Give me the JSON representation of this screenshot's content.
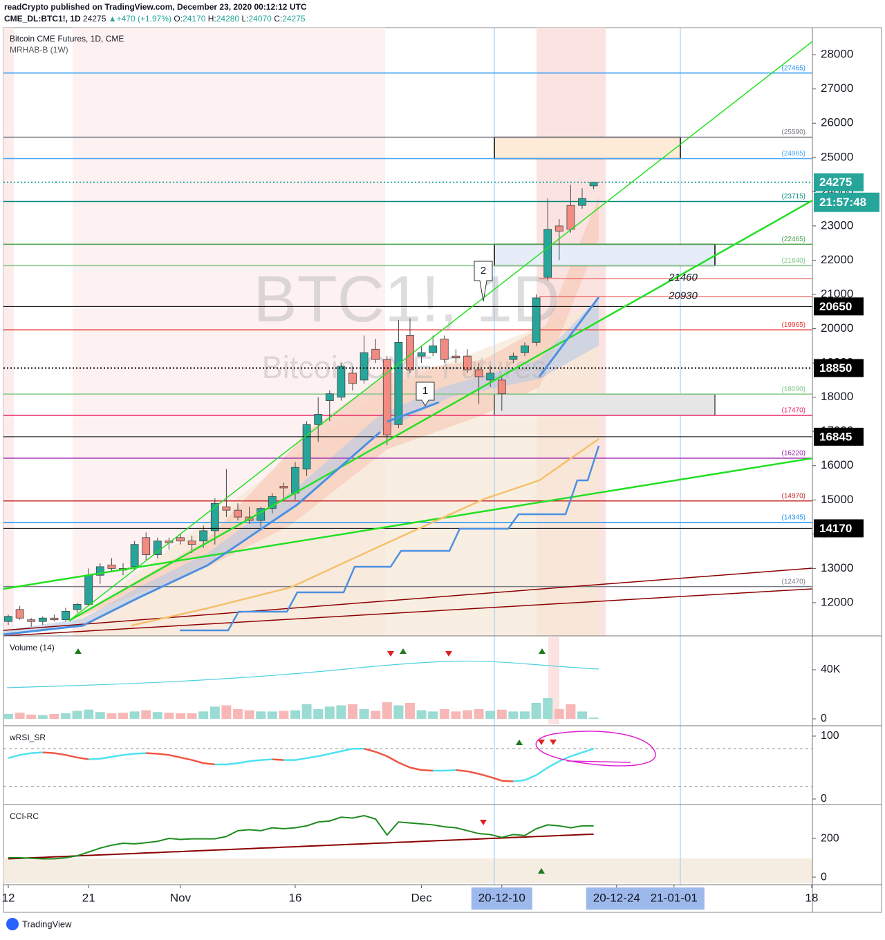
{
  "header": {
    "byline": "readCrypto published on TradingView.com, December 23, 2020 00:12:12 UTC",
    "symbol": "CME_DL:BTC1!, 1D",
    "last": 24275,
    "change": "▲+470 (+1.97%)",
    "ohlc": [
      {
        "label": "O:",
        "value": 24170
      },
      {
        "label": "H:",
        "value": 24280
      },
      {
        "label": "L:",
        "value": 24070
      },
      {
        "label": "C:",
        "value": 24275
      }
    ]
  },
  "chart_data": {
    "type": "candlestick",
    "title": "Bitcoin CME Futures, 1D, CME",
    "subtitle": "MRHAB-B (1W)",
    "watermark": "BTC1!, 1D",
    "watermark_sub": "Bitcoin CME Futures",
    "categories": [
      "12",
      null,
      null,
      null,
      null,
      null,
      null,
      "21",
      null,
      null,
      null,
      null,
      null,
      null,
      null,
      "Nov",
      null,
      null,
      null,
      null,
      null,
      null,
      null,
      null,
      null,
      "16",
      null,
      null,
      null,
      null,
      null,
      null,
      null,
      null,
      null,
      null,
      "Dec",
      null,
      null,
      null,
      null,
      null,
      null,
      "20-12-10",
      null,
      null,
      null,
      null,
      null,
      null,
      null,
      null,
      null,
      "20-12-24",
      null,
      null,
      null,
      null,
      "21-01-01",
      null,
      null,
      null,
      null,
      null,
      null,
      null,
      null,
      null,
      null,
      null,
      "18"
    ],
    "open": [
      11450,
      11800,
      11500,
      11450,
      11550,
      11500,
      11800,
      11950,
      12800,
      13100,
      13000,
      13050,
      13900,
      13400,
      13800,
      13900,
      13800,
      13800,
      14100,
      14800,
      14700,
      14500,
      14400,
      14750,
      15400,
      15200,
      15900,
      17200,
      17900,
      18000,
      18700,
      18500,
      19400,
      19100,
      17200,
      19800,
      19200,
      19300,
      19700,
      19200,
      19200,
      18800,
      18500,
      18500,
      19100,
      19300,
      19600,
      21500,
      23000,
      23600,
      23600,
      24170,
      null,
      null,
      null,
      null,
      null,
      null,
      null,
      null,
      null,
      null,
      null,
      null,
      null,
      null,
      null,
      null,
      null,
      null,
      null
    ],
    "high": [
      11650,
      11900,
      11550,
      11600,
      11650,
      11850,
      12000,
      13000,
      13150,
      13300,
      13150,
      13800,
      14050,
      13900,
      13900,
      14000,
      13950,
      14250,
      15050,
      15900,
      14900,
      14800,
      14800,
      15200,
      15500,
      16100,
      17300,
      18000,
      18200,
      19000,
      18900,
      19800,
      19700,
      19200,
      20250,
      20300,
      19500,
      19800,
      19800,
      19400,
      19400,
      19000,
      18900,
      18600,
      19300,
      19600,
      21000,
      23800,
      23200,
      24200,
      24100,
      24280,
      null,
      null,
      null,
      null,
      null,
      null,
      null,
      null,
      null,
      null,
      null,
      null,
      null,
      null,
      null,
      null,
      null,
      null,
      null
    ],
    "low": [
      11350,
      11500,
      11300,
      11350,
      11450,
      11450,
      11700,
      11900,
      12550,
      12900,
      12800,
      12950,
      13250,
      13300,
      13550,
      13700,
      13450,
      13600,
      13700,
      14500,
      14400,
      14300,
      14200,
      14600,
      15050,
      15000,
      15700,
      16700,
      17300,
      17900,
      18200,
      18400,
      19000,
      16600,
      17100,
      18700,
      19000,
      19200,
      19000,
      19000,
      18700,
      17800,
      18300,
      17600,
      19000,
      19200,
      19500,
      21400,
      22000,
      22800,
      23500,
      24070,
      null,
      null,
      null,
      null,
      null,
      null,
      null,
      null,
      null,
      null,
      null,
      null,
      null,
      null,
      null,
      null,
      null,
      null,
      null
    ],
    "close": [
      11600,
      11550,
      11450,
      11550,
      11500,
      11750,
      11950,
      12800,
      13050,
      13000,
      12950,
      13700,
      13400,
      13800,
      13750,
      13800,
      13700,
      14100,
      14900,
      14700,
      14500,
      14400,
      14750,
      15100,
      15350,
      15950,
      17200,
      17500,
      18100,
      18900,
      18400,
      19300,
      19100,
      16900,
      19600,
      18800,
      19300,
      19500,
      19100,
      19150,
      18800,
      18600,
      18700,
      18100,
      19200,
      19500,
      20900,
      22900,
      22850,
      22900,
      23800,
      24275,
      null,
      null,
      null,
      null,
      null,
      null,
      null,
      null,
      null,
      null,
      null,
      null,
      null,
      null,
      null,
      null,
      null,
      null,
      null
    ],
    "up_color": "#26a69a",
    "down_color": "#f28b82",
    "ylim": [
      11030,
      28790
    ],
    "yticks": [
      12000,
      13000,
      14000,
      15000,
      16000,
      17000,
      18000,
      19000,
      20000,
      21000,
      22000,
      23000,
      24000,
      25000,
      26000,
      27000,
      28000
    ],
    "grid": false,
    "levels": [
      {
        "value": 27465,
        "label": "(27465)",
        "color": "#2196f3"
      },
      {
        "value": 25590,
        "label": "(25590)",
        "color": "#787b86"
      },
      {
        "value": 24965,
        "label": "(24965)",
        "color": "#42a5f5"
      },
      {
        "value": 23715,
        "label": "(23715)",
        "color": "#00897b"
      },
      {
        "value": 22465,
        "label": "(22465)",
        "color": "#43a047"
      },
      {
        "value": 21840,
        "label": "(21840)",
        "color": "#81c784"
      },
      {
        "value": 19965,
        "label": "(19965)",
        "color": "#e53935"
      },
      {
        "value": 18090,
        "label": "(18090)",
        "color": "#81c784"
      },
      {
        "value": 17470,
        "label": "(17470)",
        "color": "#e91e63"
      },
      {
        "value": 16220,
        "label": "(16220)",
        "color": "#9c27b0"
      },
      {
        "value": 14970,
        "label": "(14970)",
        "color": "#c62828"
      },
      {
        "value": 14345,
        "label": "(14345)",
        "color": "#2196f3"
      },
      {
        "value": 12470,
        "label": "(12470)",
        "color": "#787b86"
      }
    ],
    "annotated_levels": [
      21460,
      20930
    ],
    "badges": [
      {
        "value": 24275,
        "color": "#26a69a",
        "line_style": "dotted"
      },
      {
        "value": 20650,
        "color": "#000000",
        "line_style": "solid"
      },
      {
        "value": 18850,
        "color": "#000000",
        "line_style": "dotted"
      },
      {
        "value": 16845,
        "color": "#000000",
        "line_style": "solid"
      },
      {
        "value": 14170,
        "color": "#000000",
        "line_style": "solid"
      }
    ],
    "countdown": "21:57:48",
    "callouts": [
      "1",
      "2"
    ],
    "volume": {
      "title": "Volume (14)",
      "values": [
        4000,
        5000,
        3500,
        3000,
        4000,
        4500,
        6500,
        7500,
        5500,
        4500,
        5000,
        6000,
        7000,
        5500,
        5000,
        4500,
        4500,
        6000,
        10000,
        11000,
        8000,
        7000,
        6000,
        6000,
        6500,
        7000,
        12000,
        8000,
        10000,
        11000,
        12000,
        8000,
        6500,
        13500,
        11000,
        13000,
        7000,
        6000,
        8000,
        6000,
        7000,
        8000,
        6500,
        7500,
        6000,
        6000,
        13000,
        17000,
        8000,
        12000,
        6000,
        1000,
        null,
        null,
        null,
        null,
        null,
        null,
        null,
        null,
        null,
        null,
        null,
        null,
        null,
        null,
        null,
        null,
        null,
        null,
        null
      ],
      "up_color": "#9adbd3",
      "down_color": "#f7b7b7",
      "ylim": [
        -4500,
        66500
      ],
      "yticks": [
        0,
        {
          "value": 40000,
          "label": "40K"
        }
      ]
    },
    "wrsi": {
      "title": "wRSI_SR",
      "values": [
        65,
        70,
        73,
        74,
        73,
        70,
        66,
        63,
        64,
        67,
        70,
        72,
        73,
        72,
        70,
        66,
        62,
        57,
        55,
        55,
        57,
        60,
        62,
        63,
        62,
        62,
        65,
        68,
        72,
        76,
        80,
        80,
        75,
        68,
        58,
        50,
        46,
        45,
        45,
        46,
        44,
        40,
        35,
        29,
        28,
        30,
        38,
        50,
        60,
        68,
        74,
        80,
        null,
        null,
        null,
        null,
        null,
        null,
        null,
        null,
        null,
        null,
        null,
        null,
        null,
        null,
        null,
        null,
        null,
        null,
        null
      ],
      "rising_color": "#4ee1f0",
      "falling_color": "#f0553f",
      "bands": [
        80,
        20
      ],
      "ylim": [
        -6.6,
        114.3
      ],
      "yticks": [
        0,
        100
      ]
    },
    "cci": {
      "title": "CCI-RC",
      "values": [
        100,
        100,
        98,
        95,
        95,
        100,
        110,
        130,
        150,
        165,
        175,
        172,
        178,
        185,
        200,
        195,
        198,
        198,
        198,
        210,
        240,
        245,
        240,
        255,
        250,
        255,
        265,
        285,
        290,
        310,
        305,
        318,
        300,
        218,
        285,
        280,
        275,
        270,
        260,
        255,
        240,
        225,
        220,
        205,
        220,
        215,
        250,
        270,
        265,
        255,
        265,
        265,
        null,
        null,
        null,
        null,
        null,
        null,
        null,
        null,
        null,
        null,
        null,
        null,
        null,
        null,
        null,
        null,
        null,
        null,
        null
      ],
      "signal": [
        95,
        97,
        100,
        102,
        105,
        107,
        110,
        112,
        115,
        117,
        120,
        122,
        125,
        127,
        130,
        132,
        135,
        137,
        140,
        142,
        145,
        147,
        150,
        152,
        155,
        157,
        160,
        162,
        165,
        167,
        170,
        172,
        175,
        177,
        180,
        182,
        185,
        187,
        190,
        192,
        195,
        197,
        200,
        202,
        205,
        207,
        210,
        212,
        215,
        217,
        220,
        222,
        null,
        null,
        null,
        null,
        null,
        null,
        null,
        null,
        null,
        null,
        null,
        null,
        null,
        null,
        null,
        null,
        null,
        null,
        null
      ],
      "color": "#1e8c1e",
      "signal_color": "#8b0000",
      "ylim": [
        -32,
        368
      ],
      "yticks": [
        0,
        200
      ]
    }
  },
  "footer": {
    "brand": "TradingView"
  }
}
